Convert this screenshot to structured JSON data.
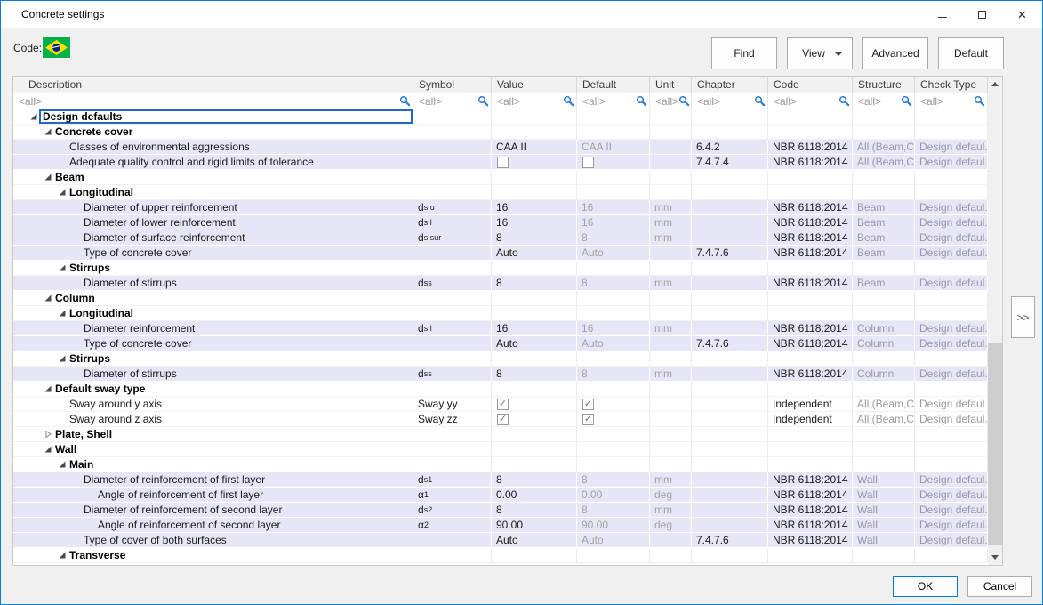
{
  "window": {
    "title": "Concrete settings"
  },
  "colors": {
    "window_border": "#0C7CD6",
    "accent_blue": "#0078D7",
    "row_highlight": "#E6E6F7",
    "selection_border": "#2566C4",
    "search_icon_blue": "#2E7CD6",
    "flag_green": "#00B04A",
    "flag_yellow": "#FFDF00",
    "flag_blue": "#002776"
  },
  "toolbar": {
    "code_label": "Code:",
    "flag_icon": "brazil-flag",
    "find_label": "Find",
    "view_label": "View",
    "advanced_label": "Advanced",
    "default_label": "Default"
  },
  "side_panel_button": {
    "label": ">>"
  },
  "footer": {
    "ok_label": "OK",
    "cancel_label": "Cancel"
  },
  "table": {
    "filter_value": "<all>",
    "columns": [
      {
        "key": "description",
        "label": "Description"
      },
      {
        "key": "symbol",
        "label": "Symbol"
      },
      {
        "key": "value",
        "label": "Value"
      },
      {
        "key": "default",
        "label": "Default"
      },
      {
        "key": "unit",
        "label": "Unit"
      },
      {
        "key": "chapter",
        "label": "Chapter"
      },
      {
        "key": "code",
        "label": "Code"
      },
      {
        "key": "structure",
        "label": "Structure"
      },
      {
        "key": "check_type",
        "label": "Check Type"
      }
    ],
    "rows": [
      {
        "type": "group",
        "level": 0,
        "label": "Design defaults",
        "expanded": true,
        "selected": true
      },
      {
        "type": "group",
        "level": 1,
        "label": "Concrete cover",
        "expanded": true
      },
      {
        "type": "data",
        "level": 2,
        "description": "Classes of environmental aggressions",
        "symbol": null,
        "value": "CAA II",
        "default": "CAA II",
        "unit": "",
        "chapter": "6.4.2",
        "code": "NBR 6118:2014",
        "structure": "All (Beam,C...",
        "check_type": "Design defaul..."
      },
      {
        "type": "data",
        "level": 2,
        "description": "Adequate quality control and rigid limits of tolerance",
        "symbol": null,
        "value": {
          "checkbox": false
        },
        "default": {
          "checkbox": false
        },
        "unit": "",
        "chapter": "7.4.7.4",
        "code": "NBR 6118:2014",
        "structure": "All (Beam,C...",
        "check_type": "Design defaul..."
      },
      {
        "type": "group",
        "level": 1,
        "label": "Beam",
        "expanded": true
      },
      {
        "type": "group",
        "level": 2,
        "label": "Longitudinal",
        "expanded": true
      },
      {
        "type": "data",
        "level": 3,
        "description": "Diameter of upper reinforcement",
        "symbol": {
          "base": "d",
          "sub": "s,u"
        },
        "value": "16",
        "default": "16",
        "unit": "mm",
        "chapter": "",
        "code": "NBR 6118:2014",
        "structure": "Beam",
        "check_type": "Design defaul..."
      },
      {
        "type": "data",
        "level": 3,
        "description": "Diameter of lower reinforcement",
        "symbol": {
          "base": "d",
          "sub": "s,l"
        },
        "value": "16",
        "default": "16",
        "unit": "mm",
        "chapter": "",
        "code": "NBR 6118:2014",
        "structure": "Beam",
        "check_type": "Design defaul..."
      },
      {
        "type": "data",
        "level": 3,
        "description": "Diameter of surface reinforcement",
        "symbol": {
          "base": "d",
          "sub": "s,sur"
        },
        "value": "8",
        "default": "8",
        "unit": "mm",
        "chapter": "",
        "code": "NBR 6118:2014",
        "structure": "Beam",
        "check_type": "Design defaul..."
      },
      {
        "type": "data",
        "level": 3,
        "description": "Type of concrete cover",
        "symbol": null,
        "value": "Auto",
        "default": "Auto",
        "unit": "",
        "chapter": "7.4.7.6",
        "code": "NBR 6118:2014",
        "structure": "Beam",
        "check_type": "Design defaul..."
      },
      {
        "type": "group",
        "level": 2,
        "label": "Stirrups",
        "expanded": true
      },
      {
        "type": "data",
        "level": 3,
        "description": "Diameter of stirrups",
        "symbol": {
          "base": "d",
          "sub": "ss"
        },
        "value": "8",
        "default": "8",
        "unit": "mm",
        "chapter": "",
        "code": "NBR 6118:2014",
        "structure": "Beam",
        "check_type": "Design defaul..."
      },
      {
        "type": "group",
        "level": 1,
        "label": "Column",
        "expanded": true
      },
      {
        "type": "group",
        "level": 2,
        "label": "Longitudinal",
        "expanded": true
      },
      {
        "type": "data",
        "level": 3,
        "description": "Diameter reinforcement",
        "symbol": {
          "base": "d",
          "sub": "s,l"
        },
        "value": "16",
        "default": "16",
        "unit": "mm",
        "chapter": "",
        "code": "NBR 6118:2014",
        "structure": "Column",
        "check_type": "Design defaul..."
      },
      {
        "type": "data",
        "level": 3,
        "description": "Type of concrete cover",
        "symbol": null,
        "value": "Auto",
        "default": "Auto",
        "unit": "",
        "chapter": "7.4.7.6",
        "code": "NBR 6118:2014",
        "structure": "Column",
        "check_type": "Design defaul..."
      },
      {
        "type": "group",
        "level": 2,
        "label": "Stirrups",
        "expanded": true
      },
      {
        "type": "data",
        "level": 3,
        "description": "Diameter of stirrups",
        "symbol": {
          "base": "d",
          "sub": "ss"
        },
        "value": "8",
        "default": "8",
        "unit": "mm",
        "chapter": "",
        "code": "NBR 6118:2014",
        "structure": "Column",
        "check_type": "Design defaul..."
      },
      {
        "type": "group",
        "level": 1,
        "label": "Default sway type",
        "expanded": true
      },
      {
        "type": "data",
        "level": 2,
        "white": true,
        "description": "Sway around y axis",
        "symbol": "Sway yy",
        "value": {
          "checkbox": true
        },
        "default": {
          "checkbox": true
        },
        "unit": "",
        "chapter": "",
        "code": "Independent",
        "structure": "All (Beam,C...",
        "check_type": "Design defaul..."
      },
      {
        "type": "data",
        "level": 2,
        "white": true,
        "description": "Sway around z axis",
        "symbol": "Sway zz",
        "value": {
          "checkbox": true
        },
        "default": {
          "checkbox": true
        },
        "unit": "",
        "chapter": "",
        "code": "Independent",
        "structure": "All (Beam,C...",
        "check_type": "Design defaul..."
      },
      {
        "type": "group",
        "level": 1,
        "label": "Plate, Shell",
        "expanded": false
      },
      {
        "type": "group",
        "level": 1,
        "label": "Wall",
        "expanded": true
      },
      {
        "type": "group",
        "level": 2,
        "label": "Main",
        "expanded": true
      },
      {
        "type": "data",
        "level": 3,
        "description": "Diameter of reinforcement of first layer",
        "symbol": {
          "base": "d",
          "sub": "s1"
        },
        "value": "8",
        "default": "8",
        "unit": "mm",
        "chapter": "",
        "code": "NBR 6118:2014",
        "structure": "Wall",
        "check_type": "Design defaul..."
      },
      {
        "type": "data",
        "level": 4,
        "description": "Angle of reinforcement of first layer",
        "symbol": {
          "base": "α",
          "sub": "1"
        },
        "value": "0.00",
        "default": "0.00",
        "unit": "deg",
        "chapter": "",
        "code": "NBR 6118:2014",
        "structure": "Wall",
        "check_type": "Design defaul..."
      },
      {
        "type": "data",
        "level": 3,
        "description": "Diameter of reinforcement of second layer",
        "symbol": {
          "base": "d",
          "sub": "s2"
        },
        "value": "8",
        "default": "8",
        "unit": "mm",
        "chapter": "",
        "code": "NBR 6118:2014",
        "structure": "Wall",
        "check_type": "Design defaul..."
      },
      {
        "type": "data",
        "level": 4,
        "description": "Angle of reinforcement of second layer",
        "symbol": {
          "base": "α",
          "sub": "2"
        },
        "value": "90.00",
        "default": "90.00",
        "unit": "deg",
        "chapter": "",
        "code": "NBR 6118:2014",
        "structure": "Wall",
        "check_type": "Design defaul..."
      },
      {
        "type": "data",
        "level": 3,
        "description": "Type of cover of both surfaces",
        "symbol": null,
        "value": "Auto",
        "default": "Auto",
        "unit": "",
        "chapter": "7.4.7.6",
        "code": "NBR 6118:2014",
        "structure": "Wall",
        "check_type": "Design defaul..."
      },
      {
        "type": "group",
        "level": 2,
        "label": "Transverse",
        "expanded": true
      }
    ]
  }
}
